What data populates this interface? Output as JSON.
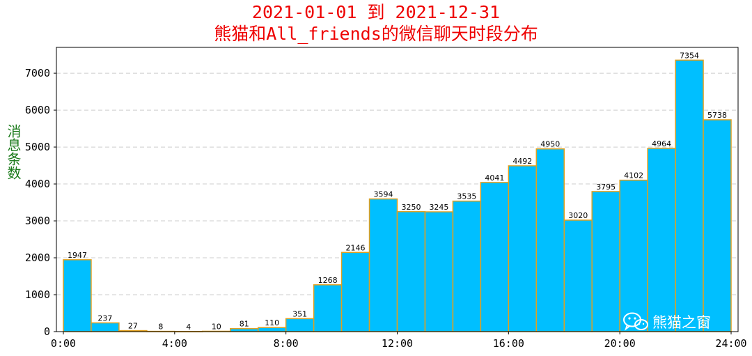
{
  "title_line1": "2021-01-01 到 2021-12-31",
  "title_line2": "熊猫和All_friends的微信聊天时段分布",
  "watermark": {
    "text": "熊猫之窗",
    "icon": "wechat-icon"
  },
  "colors": {
    "title": "#ee0000",
    "ylabel": "#1a7a1a",
    "bar_fill": "#00bfff",
    "bar_edge": "#e0a020",
    "grid": "#cccccc"
  },
  "chart_data": {
    "type": "bar",
    "title": "2021-01-01 到 2021-12-31 熊猫和All_friends的微信聊天时段分布",
    "xlabel": "",
    "ylabel": "消息条数",
    "hours": [
      0,
      1,
      2,
      3,
      4,
      5,
      6,
      7,
      8,
      9,
      10,
      11,
      12,
      13,
      14,
      15,
      16,
      17,
      18,
      19,
      20,
      21,
      22,
      23
    ],
    "values": [
      1947,
      237,
      27,
      8,
      4,
      10,
      81,
      110,
      351,
      1268,
      2146,
      3594,
      3250,
      3245,
      3535,
      4041,
      4492,
      4950,
      3020,
      3795,
      4102,
      4964,
      7354,
      5738
    ],
    "xlim": [
      -0.25,
      24.25
    ],
    "ylim": [
      0,
      7700
    ],
    "x_ticks": [
      0,
      4,
      8,
      12,
      16,
      20,
      24
    ],
    "x_tick_labels": [
      "0:00",
      "4:00",
      "8:00",
      "12:00",
      "16:00",
      "20:00",
      "24:00"
    ],
    "y_ticks": [
      0,
      1000,
      2000,
      3000,
      4000,
      5000,
      6000,
      7000
    ],
    "y_tick_labels": [
      "0",
      "1000",
      "2000",
      "3000",
      "4000",
      "5000",
      "6000",
      "7000"
    ],
    "grid": "horizontal dashed"
  }
}
